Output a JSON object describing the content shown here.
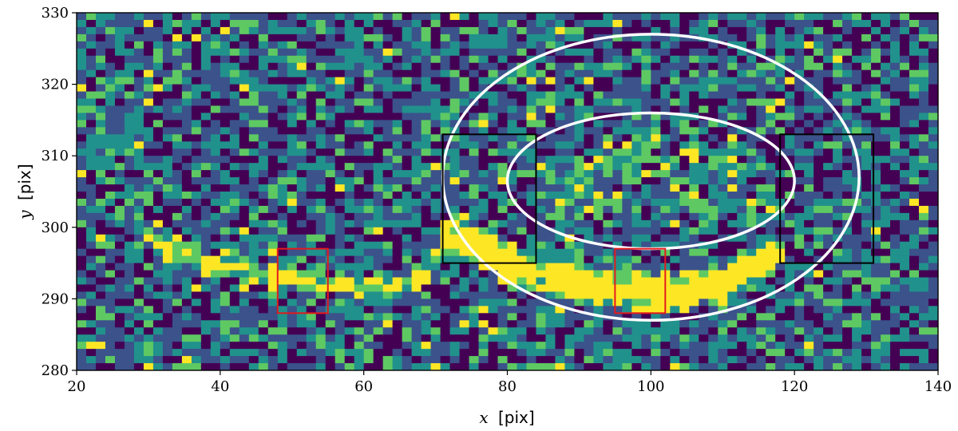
{
  "chart_data": {
    "type": "heatmap",
    "title": "",
    "xlabel": {
      "var": "x",
      "unit": "[pix]"
    },
    "ylabel": {
      "var": "y",
      "unit": "[pix]"
    },
    "xlim": [
      20,
      140
    ],
    "ylim": [
      280,
      330
    ],
    "xticks": [
      "20",
      "40",
      "60",
      "80",
      "100",
      "120",
      "140"
    ],
    "yticks": [
      "280",
      "290",
      "300",
      "310",
      "320",
      "330"
    ],
    "colormap": [
      "#440154",
      "#3b528b",
      "#21918c",
      "#5ec962",
      "#fde725"
    ],
    "grid": false,
    "arc_feature": {
      "description": "bright yellow arc",
      "x": [
        30,
        40,
        48,
        55,
        62,
        68,
        72,
        76,
        80,
        86,
        92,
        98,
        104,
        110,
        116,
        119
      ],
      "y": [
        298,
        295,
        293,
        292,
        292,
        293,
        299,
        297,
        295,
        293,
        292,
        291,
        291,
        292,
        295,
        297
      ]
    },
    "ellipses": [
      {
        "name": "outer",
        "color": "#ffffff",
        "cx": 100,
        "cy": 307,
        "rx": 29,
        "ry": 20
      },
      {
        "name": "inner",
        "color": "#ffffff",
        "cx": 100,
        "cy": 306.5,
        "rx": 20,
        "ry": 9.5
      }
    ],
    "rectangles": [
      {
        "name": "black-left",
        "color": "#000000",
        "x0": 71,
        "x1": 84,
        "y0": 295,
        "y1": 313
      },
      {
        "name": "black-right",
        "color": "#000000",
        "x0": 118,
        "x1": 131,
        "y0": 295,
        "y1": 313
      },
      {
        "name": "red-left",
        "color": "#e41a1c",
        "x0": 48,
        "x1": 55,
        "y0": 288,
        "y1": 297
      },
      {
        "name": "red-center",
        "color": "#e41a1c",
        "x0": 95,
        "x1": 102,
        "y0": 288,
        "y1": 297
      }
    ]
  }
}
